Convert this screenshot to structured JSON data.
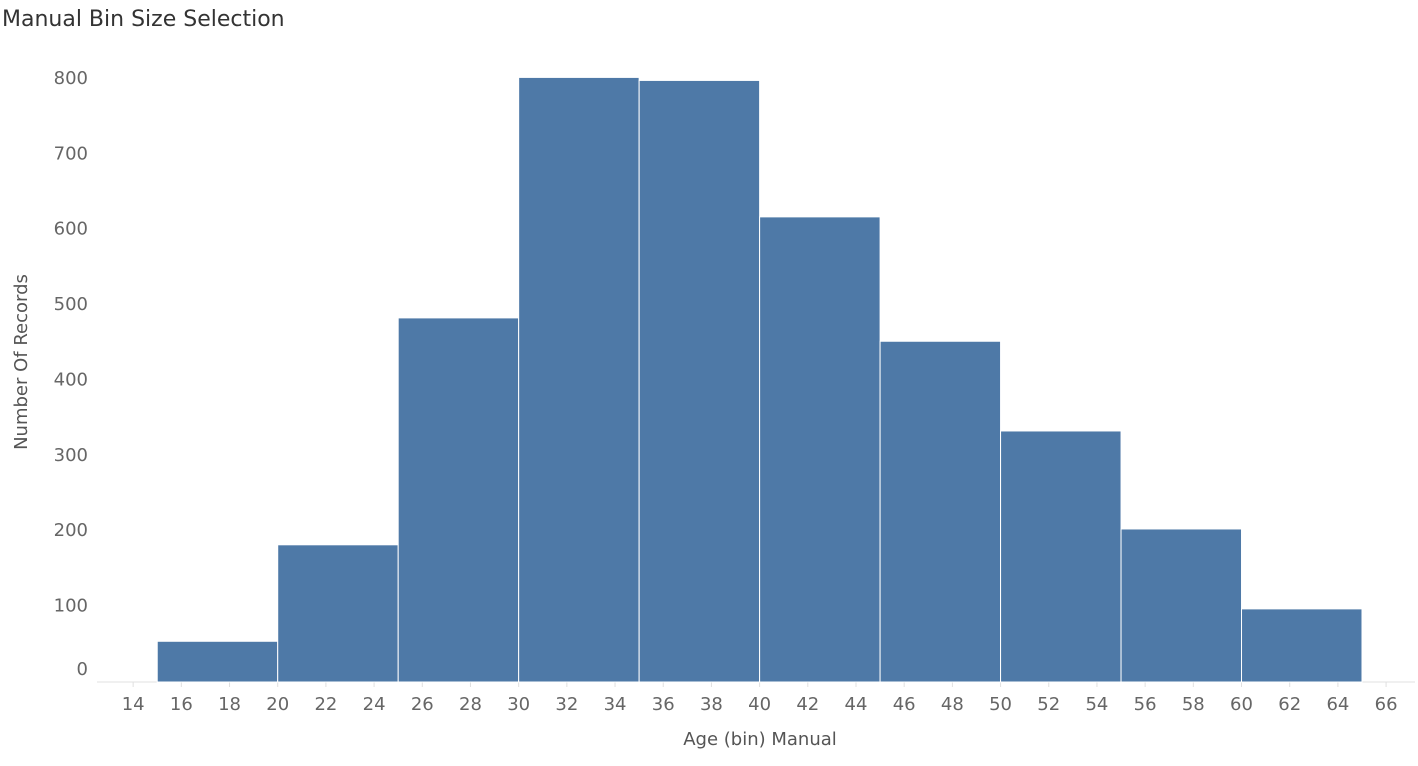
{
  "chart_data": {
    "type": "histogram",
    "title": "Manual Bin Size Selection",
    "x_label": "Age (bin) Manual",
    "y_label": "Number Of Records",
    "bins": [
      15,
      20,
      25,
      30,
      35,
      40,
      45,
      50,
      55,
      60,
      65
    ],
    "values": [
      54,
      182,
      483,
      802,
      798,
      617,
      452,
      333,
      203,
      97
    ],
    "color": "#4e79a7",
    "xlim": [
      12.5,
      67.2
    ],
    "ylim": [
      0,
      845
    ],
    "xticks": [
      14,
      16,
      18,
      20,
      22,
      24,
      26,
      28,
      30,
      32,
      34,
      36,
      38,
      40,
      42,
      44,
      46,
      48,
      50,
      52,
      54,
      56,
      58,
      60,
      62,
      64,
      66
    ],
    "yticks": [
      0,
      100,
      200,
      300,
      400,
      500,
      600,
      700,
      800
    ],
    "grid": false
  }
}
